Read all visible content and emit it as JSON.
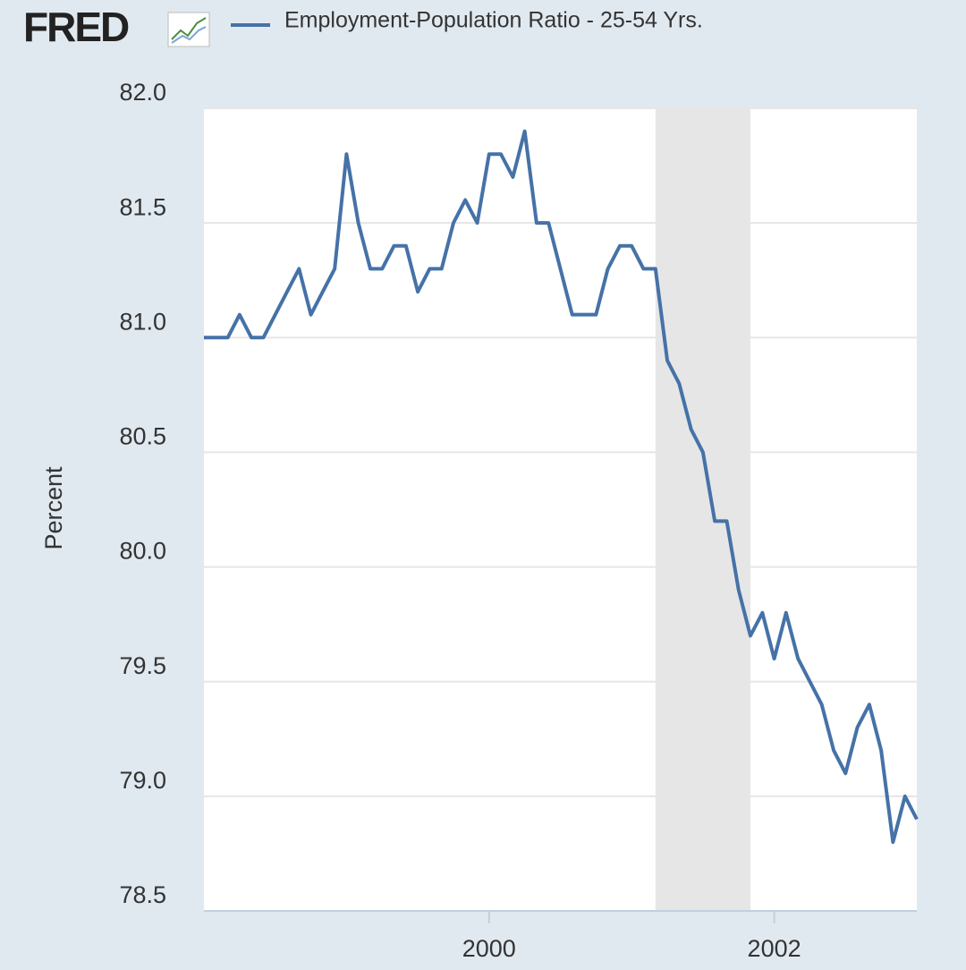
{
  "logo": "FRED",
  "chart_data": {
    "type": "line",
    "y_label": "Percent",
    "legend": "top-left",
    "grid": true,
    "xlim": [
      1998,
      2003
    ],
    "xticks": [
      2000,
      2002
    ],
    "ylim": [
      78.5,
      82
    ],
    "yticks": [
      78.5,
      {
        "value": 79,
        "label": "79.0"
      },
      79.5,
      {
        "value": 80,
        "label": "80.0"
      },
      80.5,
      {
        "value": 81,
        "label": "81.0"
      },
      81.5,
      {
        "value": 82,
        "label": "82.0"
      }
    ],
    "shaded_periods": [
      [
        2001.167,
        2001.833
      ]
    ],
    "shade_color": "#e6e6e6",
    "x": [
      1998,
      1998.083,
      1998.167,
      1998.25,
      1998.333,
      1998.417,
      1998.5,
      1998.583,
      1998.667,
      1998.75,
      1998.833,
      1998.917,
      1999,
      1999.083,
      1999.167,
      1999.25,
      1999.333,
      1999.417,
      1999.5,
      1999.583,
      1999.667,
      1999.75,
      1999.833,
      1999.917,
      2000,
      2000.083,
      2000.167,
      2000.25,
      2000.333,
      2000.417,
      2000.5,
      2000.583,
      2000.667,
      2000.75,
      2000.833,
      2000.917,
      2001,
      2001.083,
      2001.167,
      2001.25,
      2001.333,
      2001.417,
      2001.5,
      2001.583,
      2001.667,
      2001.75,
      2001.833,
      2001.917,
      2002,
      2002.083,
      2002.167,
      2002.25,
      2002.333,
      2002.417,
      2002.5,
      2002.583,
      2002.667,
      2002.75,
      2002.833,
      2002.917,
      2003
    ],
    "series": [
      {
        "name": "Employment-Population Ratio - 25-54 Yrs.",
        "color": "#4572a7",
        "values": [
          81.0,
          81.0,
          81.0,
          81.1,
          81.0,
          81.0,
          81.1,
          81.2,
          81.3,
          81.1,
          81.2,
          81.3,
          81.8,
          81.5,
          81.3,
          81.3,
          81.4,
          81.4,
          81.2,
          81.3,
          81.3,
          81.5,
          81.6,
          81.5,
          81.8,
          81.8,
          81.7,
          81.9,
          81.5,
          81.5,
          81.3,
          81.1,
          81.1,
          81.1,
          81.3,
          81.4,
          81.4,
          81.3,
          81.3,
          80.9,
          80.8,
          80.6,
          80.5,
          80.2,
          80.2,
          79.9,
          79.7,
          79.8,
          79.6,
          79.8,
          79.6,
          79.5,
          79.4,
          79.2,
          79.1,
          79.3,
          79.4,
          79.2,
          78.8,
          79.0,
          78.9
        ]
      }
    ]
  }
}
